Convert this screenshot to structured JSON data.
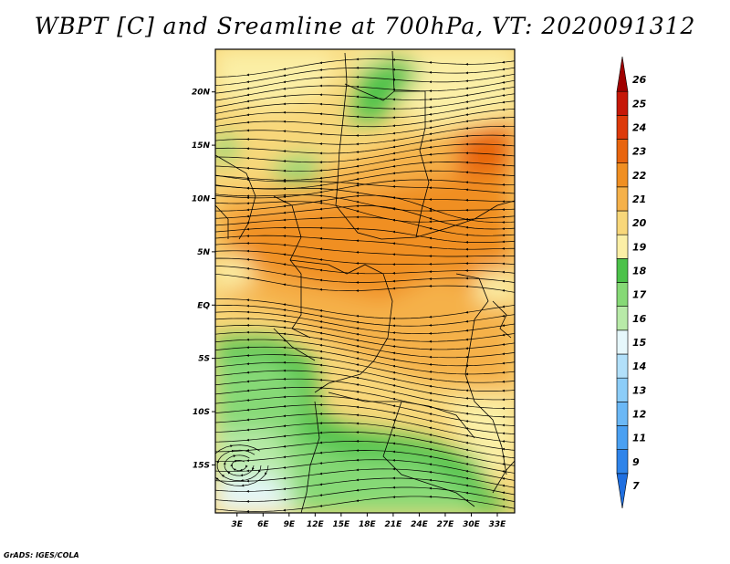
{
  "title": "WBPT [C] and Sreamline at 700hPa, VT: 2020091312",
  "credit": "GrADS: IGES/COLA",
  "map": {
    "lat_labels": [
      "20N",
      "15N",
      "10N",
      "5N",
      "EQ",
      "5S",
      "10S",
      "15S"
    ],
    "lon_labels": [
      "3E",
      "6E",
      "9E",
      "12E",
      "15E",
      "18E",
      "21E",
      "24E",
      "27E",
      "30E",
      "33E"
    ],
    "lat_values": [
      20,
      15,
      10,
      5,
      0,
      -5,
      -10,
      -15
    ],
    "lon_values": [
      3,
      6,
      9,
      12,
      15,
      18,
      21,
      24,
      27,
      30,
      33
    ],
    "lat_range": [
      -19.5,
      24
    ],
    "lon_range": [
      0.5,
      35
    ]
  },
  "colorbar": {
    "labels": [
      "7",
      "9",
      "11",
      "12",
      "13",
      "14",
      "15",
      "16",
      "17",
      "18",
      "19",
      "20",
      "21",
      "22",
      "23",
      "24",
      "25",
      "26"
    ],
    "colors": [
      "#1f6fe0",
      "#2f84ea",
      "#4aa0f2",
      "#6bb8f6",
      "#8ccdf8",
      "#b2e0fa",
      "#e6f7fb",
      "#b8eaa8",
      "#86d976",
      "#4cc24a",
      "#fbefa6",
      "#f8d77a",
      "#f5b14a",
      "#f08f22",
      "#e8650f",
      "#dd3a0a",
      "#c61808",
      "#a00000"
    ]
  }
}
